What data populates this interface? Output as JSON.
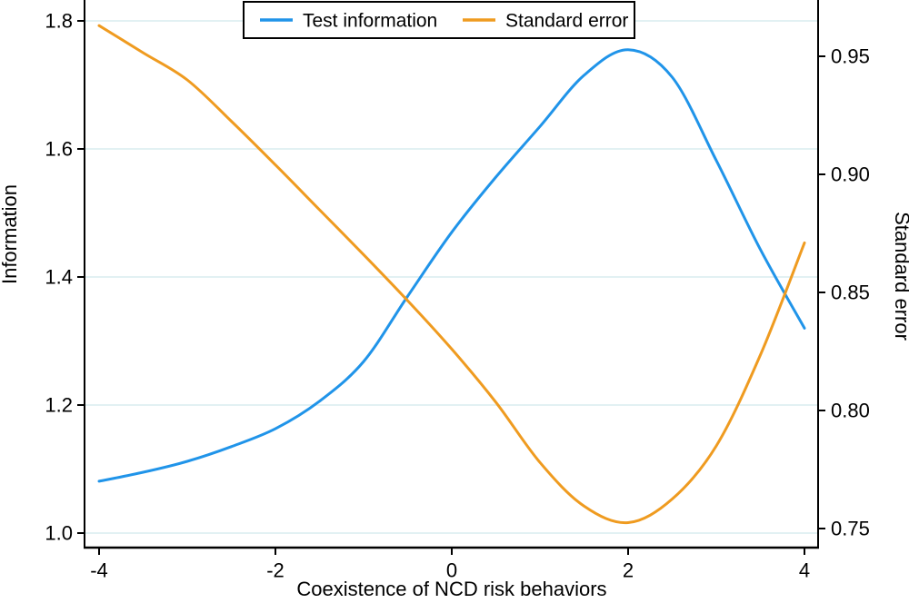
{
  "chart_data": {
    "type": "line",
    "title": "",
    "xlabel": "Coexistence of NCD risk behaviors",
    "ylabel_left": "Information",
    "ylabel_right": "Standard error",
    "xlim": [
      -4,
      4
    ],
    "ylim_left": [
      1.0,
      1.8
    ],
    "ylim_right": [
      0.75,
      0.95
    ],
    "grid": "horizontal gridlines at left-axis ticks only",
    "legend_position": "top-center boxed",
    "x_ticks": [
      {
        "value": -4,
        "label": "-4"
      },
      {
        "value": -2,
        "label": "-2"
      },
      {
        "value": 0,
        "label": "0"
      },
      {
        "value": 2,
        "label": "2"
      },
      {
        "value": 4,
        "label": "4"
      }
    ],
    "y_left_ticks": [
      {
        "value": 1.0,
        "label": "1.0"
      },
      {
        "value": 1.2,
        "label": "1.2"
      },
      {
        "value": 1.4,
        "label": "1.4"
      },
      {
        "value": 1.6,
        "label": "1.6"
      },
      {
        "value": 1.8,
        "label": "1.8"
      }
    ],
    "y_right_ticks": [
      {
        "value": 0.75,
        "label": "0.75"
      },
      {
        "value": 0.8,
        "label": "0.80"
      },
      {
        "value": 0.85,
        "label": "0.85"
      },
      {
        "value": 0.9,
        "label": "0.90"
      },
      {
        "value": 0.95,
        "label": "0.95"
      }
    ],
    "x": [
      -4,
      -3.5,
      -3,
      -2.5,
      -2,
      -1.5,
      -1,
      -0.5,
      0,
      0.5,
      1,
      1.5,
      2,
      2.5,
      3,
      3.5,
      4
    ],
    "series": [
      {
        "name": "Test information",
        "yaxis": "left",
        "color": "#2094e9",
        "values": [
          1.081,
          1.095,
          1.112,
          1.135,
          1.163,
          1.206,
          1.268,
          1.37,
          1.47,
          1.556,
          1.635,
          1.715,
          1.755,
          1.712,
          1.582,
          1.443,
          1.32
        ],
        "peak": {
          "x": 1.9,
          "value": 1.757
        }
      },
      {
        "name": "Standard error",
        "yaxis": "right",
        "color": "#ef9b20",
        "values": [
          0.963,
          0.9515,
          0.94,
          0.9225,
          0.904,
          0.885,
          0.866,
          0.8465,
          0.826,
          0.8035,
          0.778,
          0.7595,
          0.7525,
          0.7625,
          0.785,
          0.8235,
          0.871
        ],
        "minimum": {
          "x": 1.93,
          "value": 0.752
        }
      }
    ]
  },
  "colors": {
    "test_information": "#2094e9",
    "standard_error": "#ef9b20",
    "gridline": "#e2f1f3",
    "axis": "#000000",
    "background": "#ffffff",
    "legend_border": "#000000"
  }
}
